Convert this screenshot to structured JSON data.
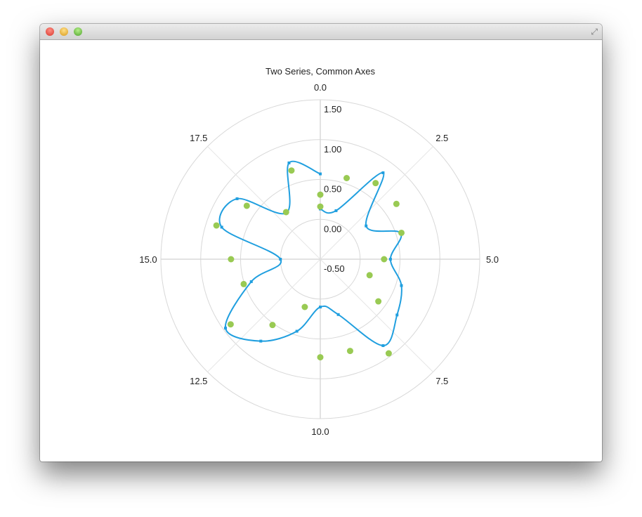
{
  "window": {
    "controls": [
      "close",
      "minimize",
      "maximize"
    ],
    "fullscreen_icon": "fullscreen-arrows-icon"
  },
  "chart_data": {
    "type": "polar",
    "title": "Two Series, Common Axes",
    "angular_axis": {
      "min": 0,
      "max": 20,
      "ticks": [
        "0.0",
        "2.5",
        "5.0",
        "7.5",
        "10.0",
        "12.5",
        "15.0",
        "17.5"
      ]
    },
    "radial_axis": {
      "min": -0.5,
      "max": 1.5,
      "ticks": [
        "-0.50",
        "0.00",
        "0.50",
        "1.00",
        "1.50"
      ]
    },
    "grid": true,
    "series": [
      {
        "type": "spline",
        "color": "#209fdf",
        "x": [
          0,
          1,
          2,
          3,
          4,
          5,
          6,
          7,
          8,
          9,
          10,
          11,
          12,
          13,
          14,
          15,
          16,
          17,
          18,
          19,
          20
        ],
        "values": [
          0.13,
          0.14,
          0.84,
          0.21,
          0.56,
          0.38,
          0.57,
          0.69,
          0.84,
          0.23,
          0.1,
          0.45,
          0.77,
          0.97,
          0.41,
          0.0,
          0.8,
          0.79,
          0.22,
          0.77,
          0.57
        ]
      },
      {
        "type": "scatter",
        "color": "#99ca53",
        "x": [
          0,
          1,
          2,
          3,
          4,
          5,
          6,
          7,
          8,
          9,
          10,
          11,
          12,
          13,
          14,
          15,
          16,
          17,
          18,
          19,
          20
        ],
        "values": [
          0.31,
          0.57,
          0.68,
          0.68,
          0.57,
          0.3,
          0.15,
          0.4,
          0.96,
          0.71,
          0.73,
          0.13,
          0.52,
          0.89,
          0.51,
          0.62,
          0.87,
          0.64,
          0.23,
          0.67,
          0.16
        ]
      }
    ]
  }
}
